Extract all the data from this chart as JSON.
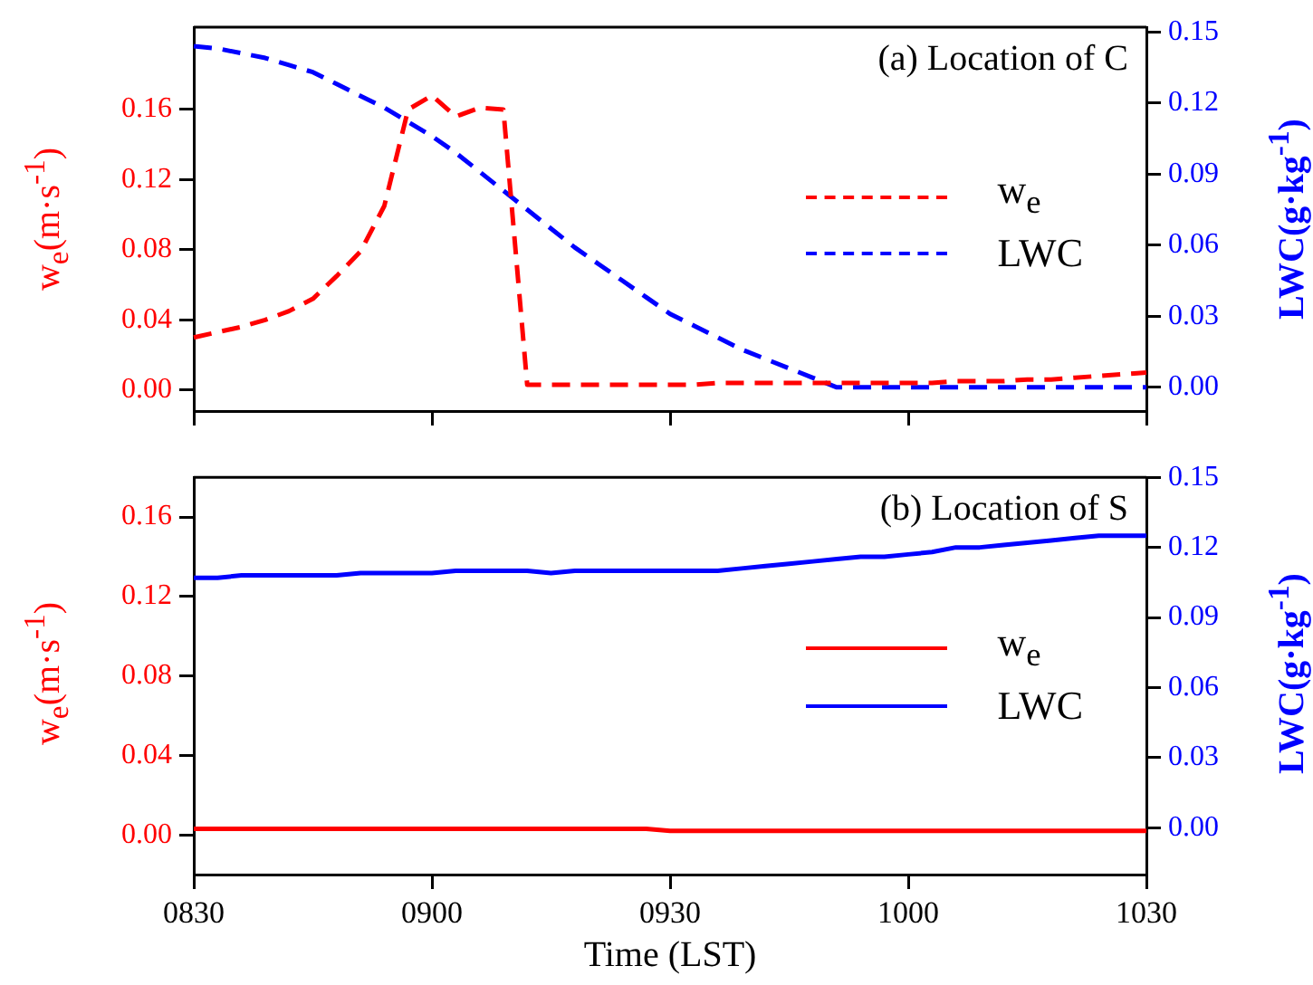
{
  "chart_data": [
    {
      "type": "line",
      "title": "(a) Location of C",
      "ylabel": "w$_{e}$(m·s$^{-1}$)",
      "y2label": "LWC(g·kg$^{-1}$)",
      "legend": "right",
      "line_style": "dashed",
      "marker": "none",
      "grid": false,
      "tick_labels": "y",
      "categories": [
        "0830",
        null,
        null,
        null,
        null,
        null,
        null,
        null,
        null,
        null,
        "0900",
        null,
        null,
        null,
        null,
        null,
        null,
        null,
        null,
        null,
        "0930",
        null,
        null,
        null,
        null,
        null,
        null,
        null,
        null,
        null,
        "1000",
        null,
        null,
        null,
        null,
        null,
        null,
        null,
        null,
        null,
        "1030"
      ],
      "ylim": [
        -0.012,
        0.207
      ],
      "yticks": [
        {
          "value": 0,
          "label": "0.00"
        },
        0.04,
        0.08,
        0.12,
        0.16
      ],
      "y2lim": [
        -0.01,
        0.152
      ],
      "y2ticks": [
        {
          "value": 0,
          "label": "0.00"
        },
        0.03,
        0.06,
        0.09,
        0.12,
        0.15
      ],
      "series": [
        {
          "name": "w$_{e}$",
          "color": "#ff0000",
          "values": [
            0.03,
            0.033,
            0.036,
            0.04,
            0.045,
            0.052,
            0.065,
            0.079,
            0.105,
            0.16,
            0.168,
            0.156,
            0.161,
            0.16,
            0.003,
            0.003,
            0.003,
            0.003,
            0.003,
            0.003,
            0.003,
            0.003,
            0.004,
            0.004,
            0.004,
            0.004,
            0.004,
            0.004,
            0.004,
            0.004,
            0.004,
            0.004,
            0.005,
            0.005,
            0.005,
            0.006,
            0.006,
            0.007,
            0.008,
            0.009,
            0.01
          ]
        },
        {
          "name": "LWC",
          "color": "#0000ff",
          "axis": "y2",
          "values": [
            0.144,
            0.143,
            0.141,
            0.139,
            0.136,
            0.133,
            0.128,
            0.123,
            0.118,
            0.112,
            0.106,
            0.099,
            0.091,
            0.083,
            0.075,
            0.067,
            0.059,
            0.052,
            0.045,
            0.038,
            0.031,
            0.026,
            0.021,
            0.016,
            0.012,
            0.008,
            0.004,
            0,
            0,
            0,
            0,
            0,
            0,
            0,
            0,
            0,
            0,
            0,
            0,
            0,
            0
          ]
        }
      ]
    },
    {
      "type": "line",
      "title": "(b) Location of S",
      "xlabel": "Time (LST)",
      "ylabel": "w$_{e}$(m·s$^{-1}$)",
      "y2label": "LWC(g·kg$^{-1}$)",
      "legend": "right",
      "line_style": "solid",
      "marker": "none",
      "grid": false,
      "categories": [
        "0830",
        null,
        null,
        null,
        null,
        null,
        null,
        null,
        null,
        null,
        "0900",
        null,
        null,
        null,
        null,
        null,
        null,
        null,
        null,
        null,
        "0930",
        null,
        null,
        null,
        null,
        null,
        null,
        null,
        null,
        null,
        "1000",
        null,
        null,
        null,
        null,
        null,
        null,
        null,
        null,
        null,
        "1030"
      ],
      "ylim": [
        -0.02,
        0.18
      ],
      "yticks": [
        {
          "value": 0,
          "label": "0.00"
        },
        0.04,
        0.08,
        0.12,
        0.16
      ],
      "y2lim": [
        -0.02,
        0.15
      ],
      "y2ticks": [
        {
          "value": 0,
          "label": "0.00"
        },
        0.03,
        0.06,
        0.09,
        0.12,
        0.15
      ],
      "series": [
        {
          "name": "w$_{e}$",
          "color": "#ff0000",
          "values": [
            0.003,
            0.003,
            0.003,
            0.003,
            0.003,
            0.003,
            0.003,
            0.003,
            0.003,
            0.003,
            0.003,
            0.003,
            0.003,
            0.003,
            0.003,
            0.003,
            0.003,
            0.003,
            0.003,
            0.003,
            0.002,
            0.002,
            0.002,
            0.002,
            0.002,
            0.002,
            0.002,
            0.002,
            0.002,
            0.002,
            0.002,
            0.002,
            0.002,
            0.002,
            0.002,
            0.002,
            0.002,
            0.002,
            0.002,
            0.002,
            0.002
          ]
        },
        {
          "name": "LWC",
          "color": "#0000ff",
          "axis": "y2",
          "values": [
            0.107,
            0.107,
            0.108,
            0.108,
            0.108,
            0.108,
            0.108,
            0.109,
            0.109,
            0.109,
            0.109,
            0.11,
            0.11,
            0.11,
            0.11,
            0.109,
            0.11,
            0.11,
            0.11,
            0.11,
            0.11,
            0.11,
            0.11,
            0.111,
            0.112,
            0.113,
            0.114,
            0.115,
            0.116,
            0.116,
            0.117,
            0.118,
            0.12,
            0.12,
            0.121,
            0.122,
            0.123,
            0.124,
            0.125,
            0.125,
            0.125
          ]
        }
      ]
    }
  ]
}
